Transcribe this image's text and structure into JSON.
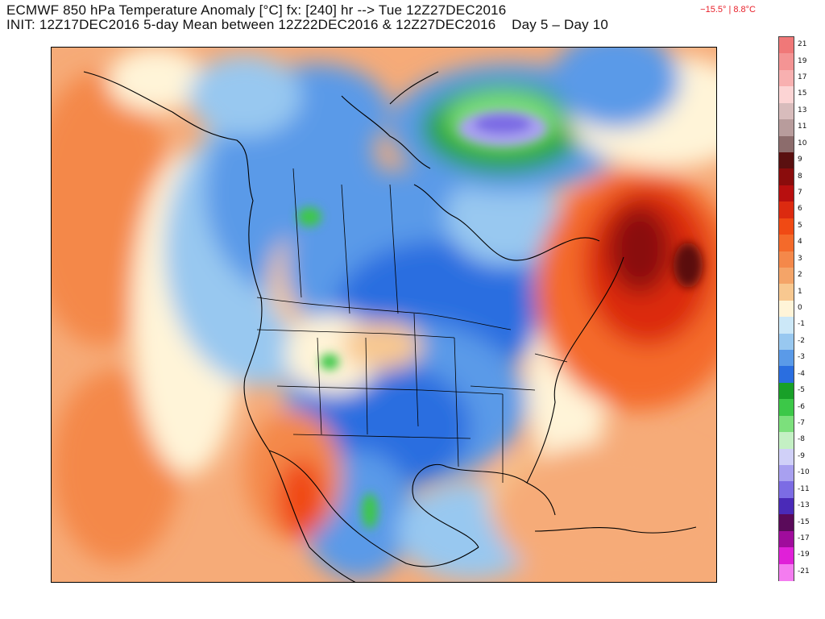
{
  "header": {
    "title": "ECMWF 850 hPa Temperature Anomaly [°C] fx: [240] hr --> Tue 12Z27DEC2016",
    "init": "INIT: 12Z17DEC2016 5-day Mean between 12Z22DEC2016 & 12Z27DEC2016    Day 5 – Day 10",
    "minmax": "−15.5° | 8.8°C"
  },
  "colorbar": {
    "levels": [
      {
        "label": "21",
        "color": "#f07878"
      },
      {
        "label": "19",
        "color": "#f49494"
      },
      {
        "label": "17",
        "color": "#f8b0b0"
      },
      {
        "label": "15",
        "color": "#fcd4d4"
      },
      {
        "label": "13",
        "color": "#d8bcbc"
      },
      {
        "label": "11",
        "color": "#b89c9c"
      },
      {
        "label": "10",
        "color": "#8c6c6c"
      },
      {
        "label": "9",
        "color": "#5a1010"
      },
      {
        "label": "8",
        "color": "#8a0c0c"
      },
      {
        "label": "7",
        "color": "#b80f0f"
      },
      {
        "label": "6",
        "color": "#dc2a10"
      },
      {
        "label": "5",
        "color": "#f04a14"
      },
      {
        "label": "4",
        "color": "#f46a2a"
      },
      {
        "label": "3",
        "color": "#f4884a"
      },
      {
        "label": "2",
        "color": "#f4a468"
      },
      {
        "label": "1",
        "color": "#f8c890"
      },
      {
        "label": "0",
        "color": "#fff4d8"
      },
      {
        "label": "-1",
        "color": "#cce8f8"
      },
      {
        "label": "-2",
        "color": "#98c8f0"
      },
      {
        "label": "-3",
        "color": "#5a9ae8"
      },
      {
        "label": "-4",
        "color": "#2a6ee0"
      },
      {
        "label": "-5",
        "color": "#18a028"
      },
      {
        "label": "-6",
        "color": "#3cc848"
      },
      {
        "label": "-7",
        "color": "#7ce07c"
      },
      {
        "label": "-8",
        "color": "#c4f0c4"
      },
      {
        "label": "-9",
        "color": "#d0d0f8"
      },
      {
        "label": "-10",
        "color": "#a8a0f0"
      },
      {
        "label": "-11",
        "color": "#7c6ce4"
      },
      {
        "label": "-13",
        "color": "#4a2ab8"
      },
      {
        "label": "-15",
        "color": "#5a0a5a"
      },
      {
        "label": "-17",
        "color": "#a00c9c"
      },
      {
        "label": "-19",
        "color": "#e020d8"
      },
      {
        "label": "-21",
        "color": "#f47cf0"
      }
    ]
  },
  "map": {
    "field": "850 hPa temperature anomaly",
    "region": "North America",
    "warm_color": "#f4884a",
    "cold_color": "#5a9ae8",
    "border_color": "#000000",
    "terrain_mask_color": "#808080"
  }
}
